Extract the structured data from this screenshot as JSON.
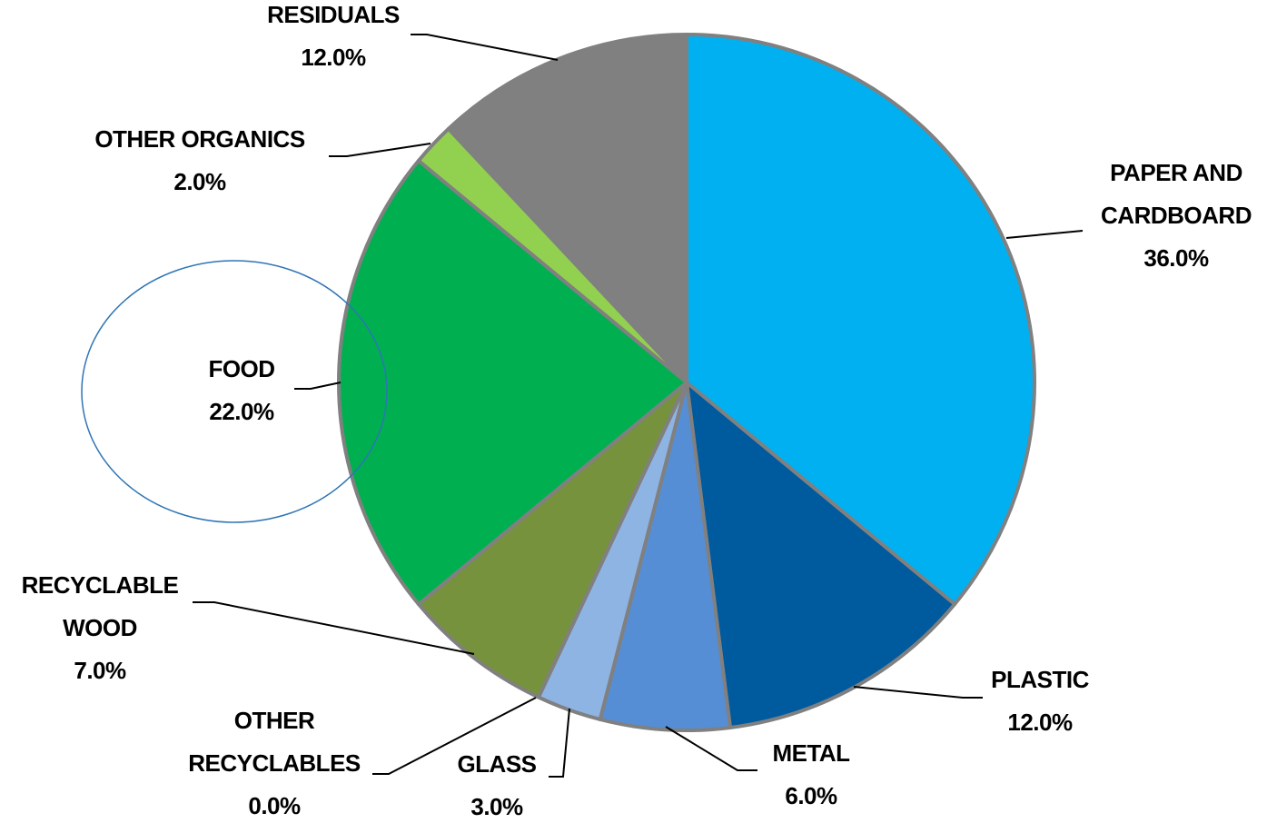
{
  "chart_data": {
    "type": "pie",
    "title": "",
    "start_angle_deg": 0,
    "direction": "clockwise",
    "border_color": "#808080",
    "slices": [
      {
        "label_lines": [
          "PAPER AND",
          "CARDBOARD"
        ],
        "value": 36.0,
        "value_label": "36.0%",
        "color": "#00B0F0"
      },
      {
        "label_lines": [
          "PLASTIC"
        ],
        "value": 12.0,
        "value_label": "12.0%",
        "color": "#005A9E"
      },
      {
        "label_lines": [
          "METAL"
        ],
        "value": 6.0,
        "value_label": "6.0%",
        "color": "#558ED5"
      },
      {
        "label_lines": [
          "GLASS"
        ],
        "value": 3.0,
        "value_label": "3.0%",
        "color": "#8EB4E3"
      },
      {
        "label_lines": [
          "OTHER",
          "RECYCLABLES"
        ],
        "value": 0.0,
        "value_label": "0.0%",
        "color": "#C5D9F1"
      },
      {
        "label_lines": [
          "RECYCLABLE",
          "WOOD"
        ],
        "value": 7.0,
        "value_label": "7.0%",
        "color": "#76923C"
      },
      {
        "label_lines": [
          "FOOD"
        ],
        "value": 22.0,
        "value_label": "22.0%",
        "color": "#00B050"
      },
      {
        "label_lines": [
          "OTHER ORGANICS"
        ],
        "value": 2.0,
        "value_label": "2.0%",
        "color": "#92D050"
      },
      {
        "label_lines": [
          "RESIDUALS"
        ],
        "value": 12.0,
        "value_label": "12.0%",
        "color": "#808080"
      }
    ],
    "highlight": {
      "slice": "FOOD",
      "shape": "ellipse",
      "color": "#2E75B6"
    }
  }
}
